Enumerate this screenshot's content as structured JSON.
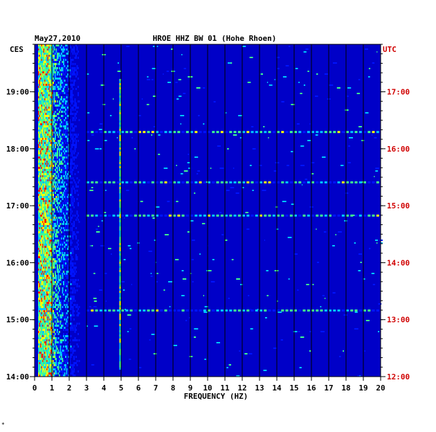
{
  "header": {
    "date": "May27,2010",
    "station": "HROE HHZ BW 01 (Hohe Rhoen)"
  },
  "footer": {
    "mark": "*"
  },
  "chart_data": {
    "type": "heatmap",
    "title": "HROE HHZ BW 01 (Hohe Rhoen)",
    "date": "May27,2010",
    "xlabel": "FREQUENCY (HZ)",
    "xlim": [
      0,
      20
    ],
    "x_ticks": [
      "0",
      "1",
      "2",
      "3",
      "4",
      "5",
      "6",
      "7",
      "8",
      "9",
      "10",
      "11",
      "12",
      "13",
      "14",
      "15",
      "16",
      "17",
      "18",
      "19",
      "20"
    ],
    "left_axis": {
      "label": "CES",
      "ticks": [
        "19:00",
        "18:00",
        "17:00",
        "16:00",
        "15:00",
        "14:00"
      ],
      "color": "#000000"
    },
    "right_axis": {
      "label": "UTC",
      "ticks": [
        "17:00",
        "16:00",
        "15:00",
        "14:00",
        "13:00",
        "12:00"
      ],
      "color": "#d00000"
    },
    "time_range_ces": [
      "14:00",
      "19:50"
    ],
    "colors": {
      "background": "#0000c8",
      "low": "#0014ff",
      "mid": "#00c8ff",
      "high": "#ffff00",
      "peak": "#ff2000",
      "grid": "#000000"
    },
    "features": {
      "strong_band_hz": [
        0.2,
        3.0
      ],
      "persistent_line_hz": 4.9,
      "broadband_events_ces": [
        "18:18",
        "17:25",
        "16:50",
        "15:10"
      ]
    }
  }
}
